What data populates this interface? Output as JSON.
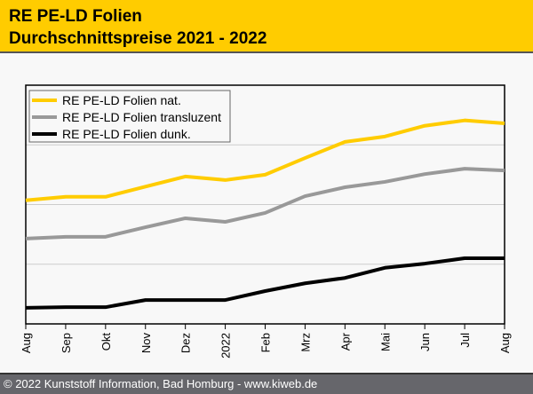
{
  "header": {
    "title_line1": "RE PE-LD Folien",
    "title_line2": "Durchschnittspreise 2021 - 2022"
  },
  "footer": {
    "copyright": "© 2022 Kunststoff Information, Bad Homburg - www.kiweb.de"
  },
  "chart_data": {
    "type": "line",
    "title": "RE PE-LD Folien Durchschnittspreise 2021 - 2022",
    "xlabel": "",
    "ylabel": "",
    "categories": [
      "Aug",
      "Sep",
      "Okt",
      "Nov",
      "Dez",
      "2022",
      "Feb",
      "Mrz",
      "Apr",
      "Mai",
      "Jun",
      "Jul",
      "Aug"
    ],
    "ylim": [
      0,
      400
    ],
    "y_ticks_unlabeled": [
      100,
      200,
      300
    ],
    "grid": true,
    "legend_position": "top-left",
    "series": [
      {
        "name": "RE PE-LD Folien nat.",
        "color": "#ffcc00",
        "values": [
          207,
          213,
          213,
          230,
          247,
          241,
          250,
          278,
          305,
          314,
          332,
          341,
          336
        ]
      },
      {
        "name": "RE PE-LD Folien transluzent",
        "color": "#999999",
        "values": [
          143,
          146,
          146,
          162,
          177,
          171,
          186,
          214,
          229,
          238,
          251,
          260,
          257
        ]
      },
      {
        "name": "RE PE-LD Folien dunk.",
        "color": "#000000",
        "values": [
          27,
          28,
          28,
          40,
          40,
          40,
          55,
          68,
          77,
          94,
          101,
          110,
          110
        ]
      }
    ]
  }
}
